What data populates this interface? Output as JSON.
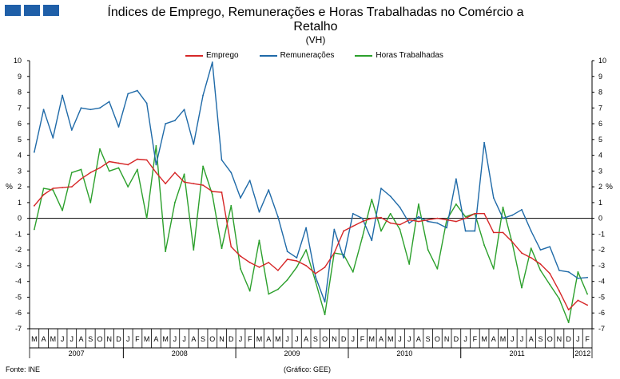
{
  "header": {
    "title_line1": "Índices de Emprego,  Remunerações e Horas Trabalhadas  no Comércio a",
    "title_line2": "Retalho",
    "subtitle": "(VH)"
  },
  "footer": {
    "source": "Fonte:  INE",
    "credit": "(Gráfico:  GEE)"
  },
  "axis": {
    "y_unit_left": "%",
    "y_unit_right": "%"
  },
  "chart_data": {
    "type": "line",
    "title": "Índices de Emprego,  Remunerações e Horas Trabalhadas  no Comércio a Retalho",
    "subtitle": "(VH)",
    "ylabel": "%",
    "ylim": [
      -7,
      10
    ],
    "yticks": [
      -7,
      -6,
      -5,
      -4,
      -3,
      -2,
      -1,
      0,
      1,
      2,
      3,
      4,
      5,
      6,
      7,
      8,
      9,
      10
    ],
    "grid": false,
    "legend_position": "top-center",
    "x": [
      "2007-03",
      "2007-04",
      "2007-05",
      "2007-06",
      "2007-07",
      "2007-08",
      "2007-09",
      "2007-10",
      "2007-11",
      "2007-12",
      "2008-01",
      "2008-02",
      "2008-03",
      "2008-04",
      "2008-05",
      "2008-06",
      "2008-07",
      "2008-08",
      "2008-09",
      "2008-10",
      "2008-11",
      "2008-12",
      "2009-01",
      "2009-02",
      "2009-03",
      "2009-04",
      "2009-05",
      "2009-06",
      "2009-07",
      "2009-08",
      "2009-09",
      "2009-10",
      "2009-11",
      "2009-12",
      "2010-01",
      "2010-02",
      "2010-03",
      "2010-04",
      "2010-05",
      "2010-06",
      "2010-07",
      "2010-08",
      "2010-09",
      "2010-10",
      "2010-11",
      "2010-12",
      "2011-01",
      "2011-02",
      "2011-03",
      "2011-04",
      "2011-05",
      "2011-06",
      "2011-07",
      "2011-08",
      "2011-09",
      "2011-10",
      "2011-11",
      "2011-12",
      "2012-01",
      "2012-02"
    ],
    "month_labels": [
      "M",
      "A",
      "M",
      "J",
      "J",
      "A",
      "S",
      "O",
      "N",
      "D",
      "J",
      "F",
      "M",
      "A",
      "M",
      "J",
      "J",
      "A",
      "S",
      "O",
      "N",
      "D",
      "J",
      "F",
      "M",
      "A",
      "M",
      "J",
      "J",
      "A",
      "S",
      "O",
      "N",
      "D",
      "J",
      "F",
      "M",
      "A",
      "M",
      "J",
      "J",
      "A",
      "S",
      "O",
      "N",
      "D",
      "J",
      "F",
      "M",
      "A",
      "M",
      "J",
      "J",
      "A",
      "S",
      "O",
      "N",
      "D",
      "J",
      "F"
    ],
    "year_labels": [
      {
        "label": "2007",
        "start": 0,
        "end": 9
      },
      {
        "label": "2008",
        "start": 10,
        "end": 21
      },
      {
        "label": "2009",
        "start": 22,
        "end": 33
      },
      {
        "label": "2010",
        "start": 34,
        "end": 45
      },
      {
        "label": "2011",
        "start": 46,
        "end": 57
      },
      {
        "label": "2012",
        "start": 58,
        "end": 59
      }
    ],
    "series": [
      {
        "name": "Emprego",
        "color": "#d62728",
        "values": [
          0.8,
          1.5,
          1.9,
          1.95,
          2.0,
          2.5,
          2.9,
          3.2,
          3.6,
          3.5,
          3.4,
          3.75,
          3.7,
          2.9,
          2.2,
          2.9,
          2.3,
          2.2,
          2.1,
          1.7,
          1.65,
          -1.8,
          -2.4,
          -2.8,
          -3.1,
          -2.8,
          -3.3,
          -2.6,
          -2.7,
          -3.0,
          -3.5,
          -3.1,
          -2.2,
          -0.8,
          -0.5,
          -0.2,
          0.0,
          0.05,
          -0.3,
          -0.4,
          -0.1,
          -0.2,
          -0.1,
          0.0,
          -0.1,
          -0.2,
          0.0,
          0.3,
          0.3,
          -0.9,
          -0.9,
          -1.5,
          -2.2,
          -2.5,
          -2.9,
          -3.5,
          -4.6,
          -5.8,
          -5.2,
          -5.5
        ]
      },
      {
        "name": "Remunerações",
        "color": "#1f6aa8",
        "values": [
          4.2,
          6.9,
          5.1,
          7.8,
          5.6,
          7.0,
          6.9,
          7.0,
          7.4,
          5.8,
          7.9,
          8.1,
          7.3,
          3.4,
          6.0,
          6.2,
          6.9,
          4.7,
          7.8,
          9.9,
          3.7,
          2.9,
          1.3,
          2.4,
          0.4,
          1.8,
          0.1,
          -2.1,
          -2.5,
          -0.6,
          -3.7,
          -5.3,
          -0.7,
          -2.5,
          0.3,
          0.0,
          -1.4,
          1.9,
          1.4,
          0.7,
          -0.3,
          0.1,
          -0.2,
          -0.3,
          -0.6,
          2.5,
          -0.8,
          -0.8,
          4.8,
          1.3,
          0.0,
          0.2,
          0.55,
          -0.8,
          -2.0,
          -1.8,
          -3.3,
          -3.4,
          -3.8,
          -3.75
        ]
      },
      {
        "name": "Horas Trabalhadas",
        "color": "#2ca02c",
        "values": [
          -0.7,
          1.9,
          1.8,
          0.5,
          2.9,
          3.1,
          1.0,
          4.4,
          3.0,
          3.2,
          2.0,
          3.1,
          0.0,
          4.6,
          -2.1,
          1.0,
          2.8,
          -2.0,
          3.3,
          1.5,
          -1.9,
          0.8,
          -3.2,
          -4.6,
          -1.4,
          -4.8,
          -4.5,
          -3.9,
          -3.1,
          -2.0,
          -4.0,
          -6.1,
          -2.2,
          -2.3,
          -3.4,
          -1.2,
          1.2,
          -0.8,
          0.3,
          -0.7,
          -2.9,
          0.9,
          -2.0,
          -3.2,
          -0.1,
          0.9,
          0.1,
          0.3,
          -1.7,
          -3.2,
          0.7,
          -1.6,
          -4.4,
          -1.9,
          -3.3,
          -4.2,
          -5.1,
          -6.6,
          -3.4,
          -4.8
        ]
      }
    ]
  }
}
